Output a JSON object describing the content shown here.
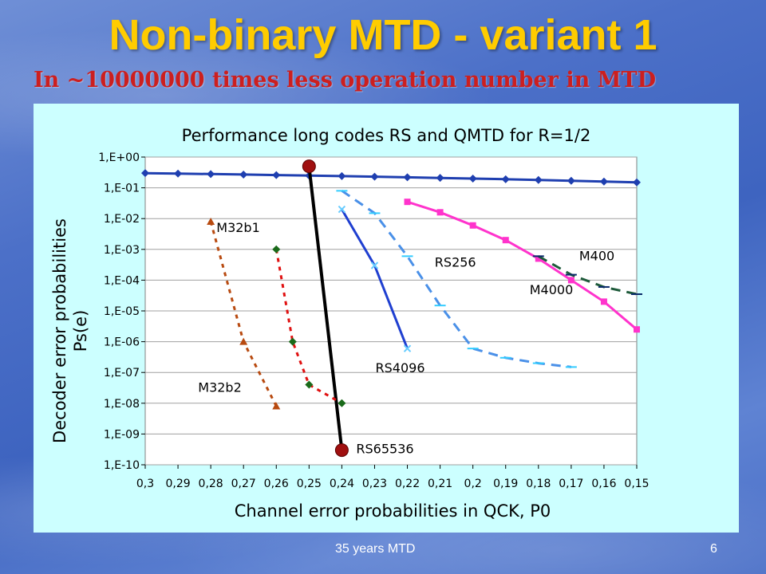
{
  "slide": {
    "title": "Non-binary MTD - variant 1",
    "subtitle": "In ~10000000 times less operation number in MTD",
    "footer_text": "35 years MTD",
    "page_number": "6"
  },
  "colors": {
    "title": "#ffcc00",
    "subtitle": "#cc1f1f",
    "panel": "#ccffff"
  },
  "chart_data": {
    "type": "line",
    "title": "Performance long codes RS and QMTD for R=1/2",
    "xlabel": "Channel error probabilities in QCK, P0",
    "ylabel_line1": "Decoder error probabilities",
    "ylabel_line2": "Ps(e)",
    "x_ticks": [
      "0,3",
      "0,29",
      "0,28",
      "0,27",
      "0,26",
      "0,25",
      "0,24",
      "0,23",
      "0,22",
      "0,21",
      "0,2",
      "0,19",
      "0,18",
      "0,17",
      "0,16",
      "0,15"
    ],
    "x_tick_values": [
      0.3,
      0.29,
      0.28,
      0.27,
      0.26,
      0.25,
      0.24,
      0.23,
      0.22,
      0.21,
      0.2,
      0.19,
      0.18,
      0.17,
      0.16,
      0.15
    ],
    "y_ticks": [
      "1,E+00",
      "1,E-01",
      "1,E-02",
      "1,E-03",
      "1,E-04",
      "1,E-05",
      "1,E-06",
      "1,E-07",
      "1,E-08",
      "1,E-09",
      "1,E-10"
    ],
    "y_scale": "log",
    "xlim": [
      0.3,
      0.15
    ],
    "ylim_exp": [
      -10,
      0
    ],
    "grid": "horizontal",
    "series": [
      {
        "name": "",
        "color": "#1f3fb0",
        "style": "solid",
        "marker": "diamond",
        "x": [
          0.3,
          0.29,
          0.28,
          0.27,
          0.26,
          0.25,
          0.24,
          0.23,
          0.22,
          0.21,
          0.2,
          0.19,
          0.18,
          0.17,
          0.16,
          0.15
        ],
        "y": [
          0.3,
          0.29,
          0.28,
          0.27,
          0.26,
          0.25,
          0.24,
          0.23,
          0.22,
          0.21,
          0.2,
          0.19,
          0.18,
          0.17,
          0.16,
          0.15
        ]
      },
      {
        "name": "RS65536",
        "color": "#000000",
        "style": "solid",
        "marker": "circle",
        "x": [
          0.25,
          0.24
        ],
        "y": [
          0.5,
          3e-10
        ]
      },
      {
        "name": "M32b1",
        "color": "#e01010",
        "style": "dotted",
        "marker": "diamond",
        "x": [
          0.26,
          0.255,
          0.25,
          0.24
        ],
        "y": [
          0.001,
          1e-06,
          4e-08,
          1e-08
        ]
      },
      {
        "name": "M32b2",
        "color": "#b84a10",
        "style": "dotted",
        "marker": "triangle",
        "x": [
          0.28,
          0.27,
          0.26
        ],
        "y": [
          0.008,
          1e-06,
          8e-09
        ]
      },
      {
        "name": "RS4096",
        "color": "#1f3fd0",
        "style": "solid",
        "marker": "x",
        "x": [
          0.24,
          0.23,
          0.22
        ],
        "y": [
          0.02,
          0.0003,
          6e-07
        ]
      },
      {
        "name": "M4000",
        "color": "#4a90e8",
        "style": "dashed",
        "marker": "dash",
        "x": [
          0.24,
          0.23,
          0.22,
          0.21,
          0.2,
          0.19,
          0.18,
          0.17
        ],
        "y": [
          0.08,
          0.015,
          0.0006,
          1.5e-05,
          6e-07,
          3e-07,
          2e-07,
          1.5e-07
        ]
      },
      {
        "name": "RS256",
        "color": "#ff33cc",
        "style": "solid",
        "marker": "square",
        "x": [
          0.22,
          0.21,
          0.2,
          0.19,
          0.18,
          0.17,
          0.16,
          0.15
        ],
        "y": [
          0.035,
          0.016,
          0.006,
          0.002,
          0.0005,
          0.0001,
          2e-05,
          2.5e-06
        ]
      },
      {
        "name": "M400",
        "color": "#1e5a3a",
        "style": "dashed",
        "marker": "dash",
        "x": [
          0.18,
          0.17,
          0.16,
          0.15
        ],
        "y": [
          0.0006,
          0.00015,
          6e-05,
          3.5e-05
        ]
      }
    ]
  }
}
